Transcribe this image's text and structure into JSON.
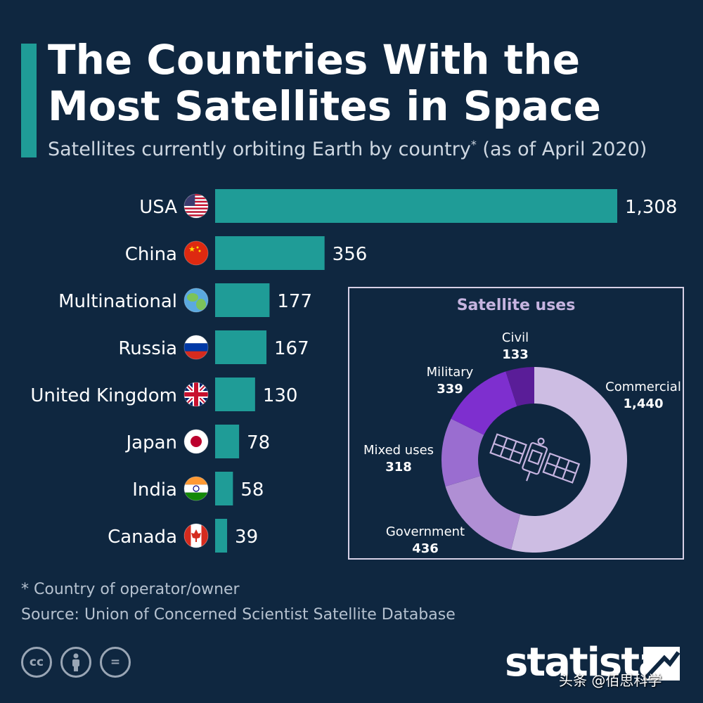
{
  "header": {
    "title": "The Countries With the Most Satellites in Space",
    "subtitle": "Satellites currently orbiting Earth by country",
    "subtitle_marker": "*",
    "subtitle_suffix": " (as of April 2020)"
  },
  "chart_data": [
    {
      "type": "bar",
      "orientation": "horizontal",
      "categories": [
        "USA",
        "China",
        "Multinational",
        "Russia",
        "United Kingdom",
        "Japan",
        "India",
        "Canada"
      ],
      "values": [
        1308,
        356,
        177,
        167,
        130,
        78,
        58,
        39
      ],
      "value_labels": [
        "1,308",
        "356",
        "177",
        "167",
        "130",
        "78",
        "58",
        "39"
      ],
      "flags": [
        "usa-flag-icon",
        "china-flag-icon",
        "globe-icon",
        "russia-flag-icon",
        "uk-flag-icon",
        "japan-flag-icon",
        "india-flag-icon",
        "canada-flag-icon"
      ],
      "xlim": [
        0,
        1308
      ],
      "bar_color": "#1f9c97",
      "grid": false
    },
    {
      "type": "pie",
      "variant": "donut",
      "title": "Satellite uses",
      "categories": [
        "Commercial",
        "Government",
        "Mixed uses",
        "Military",
        "Civil"
      ],
      "values": [
        1440,
        436,
        318,
        339,
        133
      ],
      "value_labels": [
        "1,440",
        "436",
        "318",
        "339",
        "133"
      ],
      "colors": [
        "#cdbde3",
        "#b08fd4",
        "#9a6dd0",
        "#7e2fcf",
        "#5a1d98"
      ],
      "center_icon": "satellite-icon"
    }
  ],
  "footer": {
    "footnote": "* Country of operator/owner",
    "source": "Source: Union of Concerned Scientist Satellite Database",
    "brand": "statista",
    "watermark": "头条 @佰思科学",
    "cc_icons": [
      {
        "icon": "cc-icon",
        "text": "cc"
      },
      {
        "icon": "attribution-icon",
        "text": ""
      },
      {
        "icon": "no-derivatives-icon",
        "text": "="
      }
    ]
  },
  "colors": {
    "background": "#0f2740",
    "accent": "#1f9c97",
    "panel_title": "#c6b4e0"
  }
}
